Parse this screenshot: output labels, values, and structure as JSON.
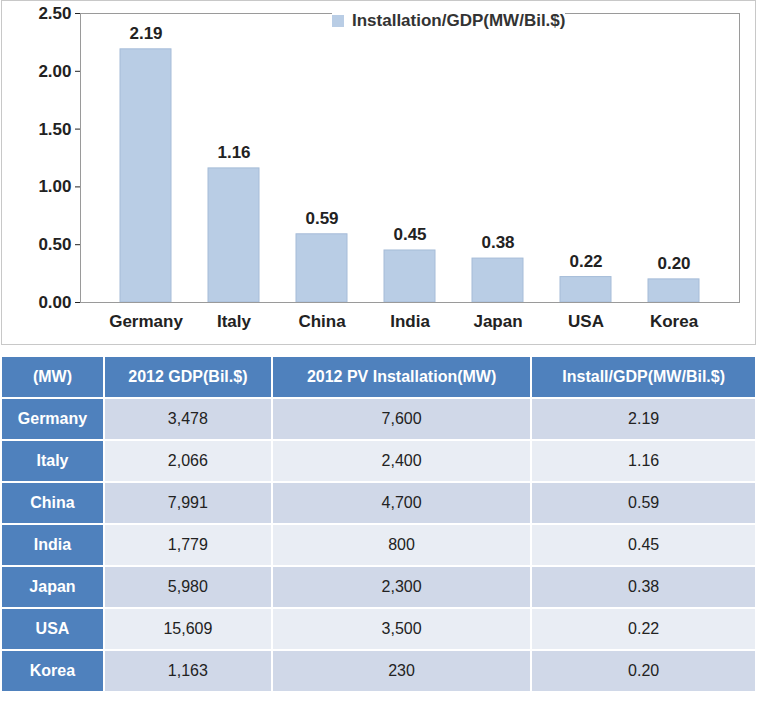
{
  "chart_data": {
    "type": "bar",
    "categories": [
      "Germany",
      "Italy",
      "China",
      "India",
      "Japan",
      "USA",
      "Korea"
    ],
    "series": [
      {
        "name": "Installation/GDP(MW/Bil.$)",
        "color": "#b9cde5",
        "values": [
          2.19,
          1.16,
          0.59,
          0.45,
          0.38,
          0.22,
          0.2
        ],
        "value_labels": [
          "2.19",
          "1.16",
          "0.59",
          "0.45",
          "0.38",
          "0.22",
          "0.20"
        ]
      }
    ],
    "ylim": [
      0,
      2.5
    ],
    "yticks": [
      {
        "value": 0,
        "label": "0.00"
      },
      {
        "value": 0.5,
        "label": "0.50"
      },
      {
        "value": 1,
        "label": "1.00"
      },
      {
        "value": 1.5,
        "label": "1.50"
      },
      {
        "value": 2,
        "label": "2.00"
      },
      {
        "value": 2.5,
        "label": "2.50"
      }
    ],
    "grid": false,
    "data_labels": true,
    "legend": "top"
  },
  "table": {
    "header": [
      "(MW)",
      "2012 GDP(Bil.$)",
      "2012 PV Installation(MW)",
      "Install/GDP(MW/Bil.$)"
    ],
    "rows": [
      [
        "Germany",
        "3,478",
        "7,600",
        "2.19"
      ],
      [
        "Italy",
        "2,066",
        "2,400",
        "1.16"
      ],
      [
        "China",
        "7,991",
        "4,700",
        "0.59"
      ],
      [
        "India",
        "1,779",
        "800",
        "0.45"
      ],
      [
        "Japan",
        "5,980",
        "2,300",
        "0.38"
      ],
      [
        "USA",
        "15,609",
        "3,500",
        "0.22"
      ],
      [
        "Korea",
        "1,163",
        "230",
        "0.20"
      ]
    ]
  }
}
